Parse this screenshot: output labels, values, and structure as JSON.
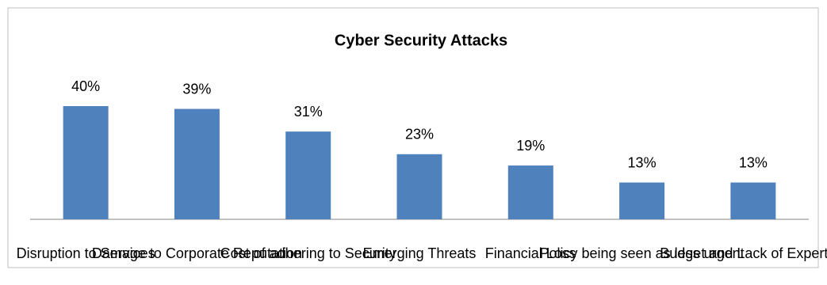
{
  "chart_data": {
    "type": "bar",
    "title": "Cyber Security Attacks",
    "categories": [
      "Disruption to Services",
      "Damage to Corporate Reputation",
      "Cost of adhering to Security",
      "Emerging Threats",
      "Financial Loss",
      "Policy being seen as less urgent",
      "Budget and Lack of Expertise"
    ],
    "values": [
      40,
      39,
      31,
      23,
      19,
      13,
      13
    ],
    "value_labels": [
      "40%",
      "39%",
      "31%",
      "23%",
      "19%",
      "13%",
      "13%"
    ],
    "color": "#4f81bd",
    "ylim": [
      0,
      40
    ]
  }
}
